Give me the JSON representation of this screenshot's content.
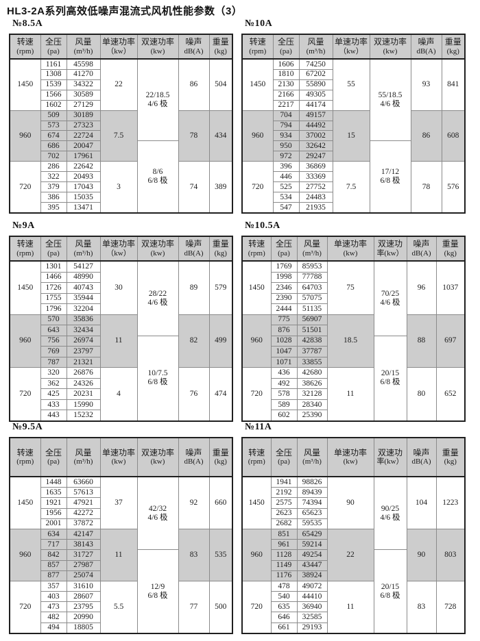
{
  "page": {
    "title": "HL3-2A系列高效低噪声混流式风机性能参数（3）"
  },
  "tables": [
    {
      "model": "№8.5A",
      "variant": "A",
      "columns": [
        [
          "转速",
          "(rpm)"
        ],
        [
          "全压",
          "(pa)"
        ],
        [
          "风量",
          "(m³/h)"
        ],
        [
          "单速功率",
          "（kw）"
        ],
        [
          "双速功率",
          "(kw)"
        ],
        [
          "噪声",
          "dB(A)"
        ],
        [
          "重量",
          "(kg)"
        ]
      ],
      "groups": [
        {
          "rpm": "1450",
          "shaded": false,
          "power": "22",
          "noise": "86",
          "weight": "504",
          "rows": [
            [
              "1161",
              "45598"
            ],
            [
              "1308",
              "41270"
            ],
            [
              "1539",
              "34322"
            ],
            [
              "1566",
              "30589"
            ],
            [
              "1602",
              "27129"
            ]
          ]
        },
        {
          "rpm": "960",
          "shaded": true,
          "power": "7.5",
          "noise": "78",
          "weight": "434",
          "rows": [
            [
              "509",
              "30189"
            ],
            [
              "573",
              "27323"
            ],
            [
              "674",
              "22724"
            ],
            [
              "686",
              "20047"
            ],
            [
              "702",
              "17961"
            ]
          ]
        },
        {
          "rpm": "720",
          "shaded": false,
          "power": "3",
          "noise": "74",
          "weight": "389",
          "rows": [
            [
              "286",
              "22642"
            ],
            [
              "322",
              "20493"
            ],
            [
              "379",
              "17043"
            ],
            [
              "386",
              "15035"
            ],
            [
              "395",
              "13471"
            ]
          ]
        }
      ],
      "dual": {
        "split": 8,
        "cells": [
          [
            "22/18.5",
            "4/6 极"
          ],
          [
            "8/6",
            "6/8 极"
          ]
        ]
      }
    },
    {
      "model": "№10A",
      "variant": "A",
      "columns": [
        [
          "转速",
          "(rpm)"
        ],
        [
          "全压",
          "(pa)"
        ],
        [
          "风量",
          "(m³/h)"
        ],
        [
          "单速功率",
          "（kw）"
        ],
        [
          "双速功率",
          "(kw)"
        ],
        [
          "噪声",
          "dB(A)"
        ],
        [
          "重量",
          "(kg)"
        ]
      ],
      "groups": [
        {
          "rpm": "1450",
          "shaded": false,
          "power": "55",
          "noise": "93",
          "weight": "841",
          "rows": [
            [
              "1606",
              "74250"
            ],
            [
              "1810",
              "67202"
            ],
            [
              "2130",
              "55890"
            ],
            [
              "2166",
              "49305"
            ],
            [
              "2217",
              "44174"
            ]
          ]
        },
        {
          "rpm": "960",
          "shaded": true,
          "power": "15",
          "noise": "86",
          "weight": "608",
          "rows": [
            [
              "704",
              "49157"
            ],
            [
              "794",
              "44492"
            ],
            [
              "934",
              "37002"
            ],
            [
              "950",
              "32642"
            ],
            [
              "972",
              "29247"
            ]
          ]
        },
        {
          "rpm": "720",
          "shaded": false,
          "power": "7.5",
          "noise": "78",
          "weight": "576",
          "rows": [
            [
              "396",
              "36869"
            ],
            [
              "446",
              "33369"
            ],
            [
              "525",
              "27752"
            ],
            [
              "534",
              "24483"
            ],
            [
              "547",
              "21935"
            ]
          ]
        }
      ],
      "dual": {
        "split": 8,
        "cells": [
          [
            "55/18.5",
            "4/6 极"
          ],
          [
            "17/12",
            "6/8 极"
          ]
        ]
      }
    },
    {
      "model": "№9A",
      "variant": "A",
      "columns": [
        [
          "转速",
          "(rpm)"
        ],
        [
          "全压",
          "(pa)"
        ],
        [
          "风量",
          "(m³/h)"
        ],
        [
          "单速功率",
          "（kw）"
        ],
        [
          "双速功率",
          "(kw)"
        ],
        [
          "噪声",
          "dB(A)"
        ],
        [
          "重量",
          "(kg)"
        ]
      ],
      "groups": [
        {
          "rpm": "1450",
          "shaded": false,
          "power": "30",
          "noise": "89",
          "weight": "579",
          "rows": [
            [
              "1301",
              "54127"
            ],
            [
              "1466",
              "48990"
            ],
            [
              "1726",
              "40743"
            ],
            [
              "1755",
              "35944"
            ],
            [
              "1796",
              "32204"
            ]
          ]
        },
        {
          "rpm": "960",
          "shaded": true,
          "power": "11",
          "noise": "82",
          "weight": "499",
          "rows": [
            [
              "570",
              "35836"
            ],
            [
              "643",
              "32434"
            ],
            [
              "756",
              "26974"
            ],
            [
              "769",
              "23797"
            ],
            [
              "787",
              "21321"
            ]
          ]
        },
        {
          "rpm": "720",
          "shaded": false,
          "power": "4",
          "noise": "76",
          "weight": "474",
          "rows": [
            [
              "320",
              "26876"
            ],
            [
              "362",
              "24326"
            ],
            [
              "425",
              "20231"
            ],
            [
              "433",
              "15990"
            ],
            [
              "443",
              "15232"
            ]
          ]
        }
      ],
      "dual": {
        "split": 7,
        "cells": [
          [
            "28/22",
            "4/6 极"
          ],
          [
            "10/7.5",
            "6/8 极"
          ]
        ]
      }
    },
    {
      "model": "№10.5A",
      "variant": "B",
      "columns": [
        [
          "转速",
          "(rpm)"
        ],
        [
          "全压",
          "(pa)"
        ],
        [
          "风量",
          "(m³/h)"
        ],
        [
          "单速功率",
          "(kw)"
        ],
        [
          "双速功",
          "率(kw）"
        ],
        [
          "噪声",
          "dB(A)"
        ],
        [
          "重量",
          "(kg)"
        ]
      ],
      "groups": [
        {
          "rpm": "1450",
          "shaded": false,
          "power": "75",
          "noise": "96",
          "weight": "1037",
          "rows": [
            [
              "1769",
              "85953"
            ],
            [
              "1998",
              "77788"
            ],
            [
              "2346",
              "64703"
            ],
            [
              "2390",
              "57075"
            ],
            [
              "2444",
              "51135"
            ]
          ]
        },
        {
          "rpm": "960",
          "shaded": true,
          "power": "18.5",
          "noise": "88",
          "weight": "697",
          "rows": [
            [
              "775",
              "56907"
            ],
            [
              "876",
              "51501"
            ],
            [
              "1028",
              "42838"
            ],
            [
              "1047",
              "37787"
            ],
            [
              "1071",
              "33855"
            ]
          ]
        },
        {
          "rpm": "720",
          "shaded": false,
          "power": "11",
          "noise": "80",
          "weight": "652",
          "rows": [
            [
              "436",
              "42680"
            ],
            [
              "492",
              "38626"
            ],
            [
              "578",
              "32128"
            ],
            [
              "589",
              "28340"
            ],
            [
              "602",
              "25390"
            ]
          ]
        }
      ],
      "dual": {
        "split": 7,
        "cells": [
          [
            "70/25",
            "4/6 极"
          ],
          [
            "20/15",
            "6/8 极"
          ]
        ]
      }
    },
    {
      "model": "№9.5A",
      "variant": "A",
      "columns": [
        [
          "转速",
          "(rpm)"
        ],
        [
          "全压",
          "(pa)"
        ],
        [
          "风量",
          "(m³/h)"
        ],
        [
          "单速功率",
          "(kw)"
        ],
        [
          "双速功率",
          "(kw)"
        ],
        [
          "噪声",
          "dB(A)"
        ],
        [
          "重量",
          "(kg)"
        ]
      ],
      "groups": [
        {
          "rpm": "1450",
          "shaded": false,
          "power": "37",
          "noise": "92",
          "weight": "660",
          "rows": [
            [
              "1448",
              "63660"
            ],
            [
              "1635",
              "57613"
            ],
            [
              "1921",
              "47921"
            ],
            [
              "1956",
              "42272"
            ],
            [
              "2001",
              "37872"
            ]
          ]
        },
        {
          "rpm": "960",
          "shaded": true,
          "power": "11",
          "noise": "83",
          "weight": "535",
          "rows": [
            [
              "634",
              "42147"
            ],
            [
              "717",
              "38143"
            ],
            [
              "842",
              "31727"
            ],
            [
              "857",
              "27987"
            ],
            [
              "877",
              "25074"
            ]
          ]
        },
        {
          "rpm": "720",
          "shaded": false,
          "power": "5.5",
          "noise": "77",
          "weight": "500",
          "rows": [
            [
              "357",
              "31610"
            ],
            [
              "403",
              "28607"
            ],
            [
              "473",
              "23795"
            ],
            [
              "482",
              "20990"
            ],
            [
              "494",
              "18805"
            ]
          ]
        }
      ],
      "dual": {
        "split": 7,
        "cells": [
          [
            "42/32",
            "4/6 极"
          ],
          [
            "12/9",
            "6/8 极"
          ]
        ]
      }
    },
    {
      "model": "№11A",
      "variant": "B",
      "columns": [
        [
          "转速",
          "(rpm)"
        ],
        [
          "全压",
          "(pa)"
        ],
        [
          "风量",
          "(m³/h)"
        ],
        [
          "单速功率",
          "(kw)"
        ],
        [
          "双速功",
          "率(kw）"
        ],
        [
          "噪声",
          "dB(A)"
        ],
        [
          "重量",
          "(kg)"
        ]
      ],
      "groups": [
        {
          "rpm": "1450",
          "shaded": false,
          "power": "90",
          "noise": "104",
          "weight": "1223",
          "rows": [
            [
              "1941",
              "98826"
            ],
            [
              "2192",
              "89439"
            ],
            [
              "2575",
              "74394"
            ],
            [
              "2623",
              "65623"
            ],
            [
              "2682",
              "59535"
            ]
          ]
        },
        {
          "rpm": "960",
          "shaded": true,
          "power": "22",
          "noise": "90",
          "weight": "803",
          "rows": [
            [
              "851",
              "65429"
            ],
            [
              "961",
              "59214"
            ],
            [
              "1128",
              "49254"
            ],
            [
              "1149",
              "43447"
            ],
            [
              "1176",
              "38924"
            ]
          ]
        },
        {
          "rpm": "720",
          "shaded": false,
          "power": "11",
          "noise": "83",
          "weight": "728",
          "rows": [
            [
              "478",
              "49072"
            ],
            [
              "540",
              "44410"
            ],
            [
              "635",
              "36940"
            ],
            [
              "646",
              "32585"
            ],
            [
              "661",
              "29193"
            ]
          ]
        }
      ],
      "dual": {
        "split": 7,
        "cells": [
          [
            "90/25",
            "4/6 极"
          ],
          [
            "20/15",
            "6/8 极"
          ]
        ]
      }
    }
  ],
  "colors": {
    "shade": "#cdcdcd",
    "border_dark": "#1f1f1f",
    "border_light": "#8a8a8a"
  }
}
